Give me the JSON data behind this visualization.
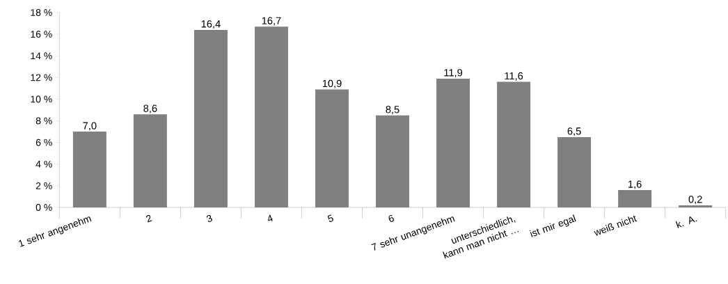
{
  "chart_data": {
    "type": "bar",
    "categories": [
      "1 sehr angenehm",
      "2",
      "3",
      "4",
      "5",
      "6",
      "7  sehr unangenehm",
      "unterschiedlich, kann man nicht …",
      "ist mir egal",
      "weiß nicht",
      "k. A."
    ],
    "values": [
      7.0,
      8.6,
      16.4,
      16.7,
      10.9,
      8.5,
      11.9,
      11.6,
      6.5,
      1.6,
      0.2
    ],
    "value_labels": [
      "7,0",
      "8,6",
      "16,4",
      "16,7",
      "10,9",
      "8,5",
      "11,9",
      "11,6",
      "6,5",
      "1,6",
      "0,2"
    ],
    "color": "#808080",
    "ylim": [
      0,
      18
    ],
    "yticks": [
      {
        "value": 0,
        "label": "0 %"
      },
      {
        "value": 2,
        "label": "2 %"
      },
      {
        "value": 4,
        "label": "4 %"
      },
      {
        "value": 6,
        "label": "6 %"
      },
      {
        "value": 8,
        "label": "8 %"
      },
      {
        "value": 10,
        "label": "10 %"
      },
      {
        "value": 12,
        "label": "12 %"
      },
      {
        "value": 14,
        "label": "14 %"
      },
      {
        "value": 16,
        "label": "16 %"
      },
      {
        "value": 18,
        "label": "18 %"
      }
    ],
    "grid": false
  }
}
